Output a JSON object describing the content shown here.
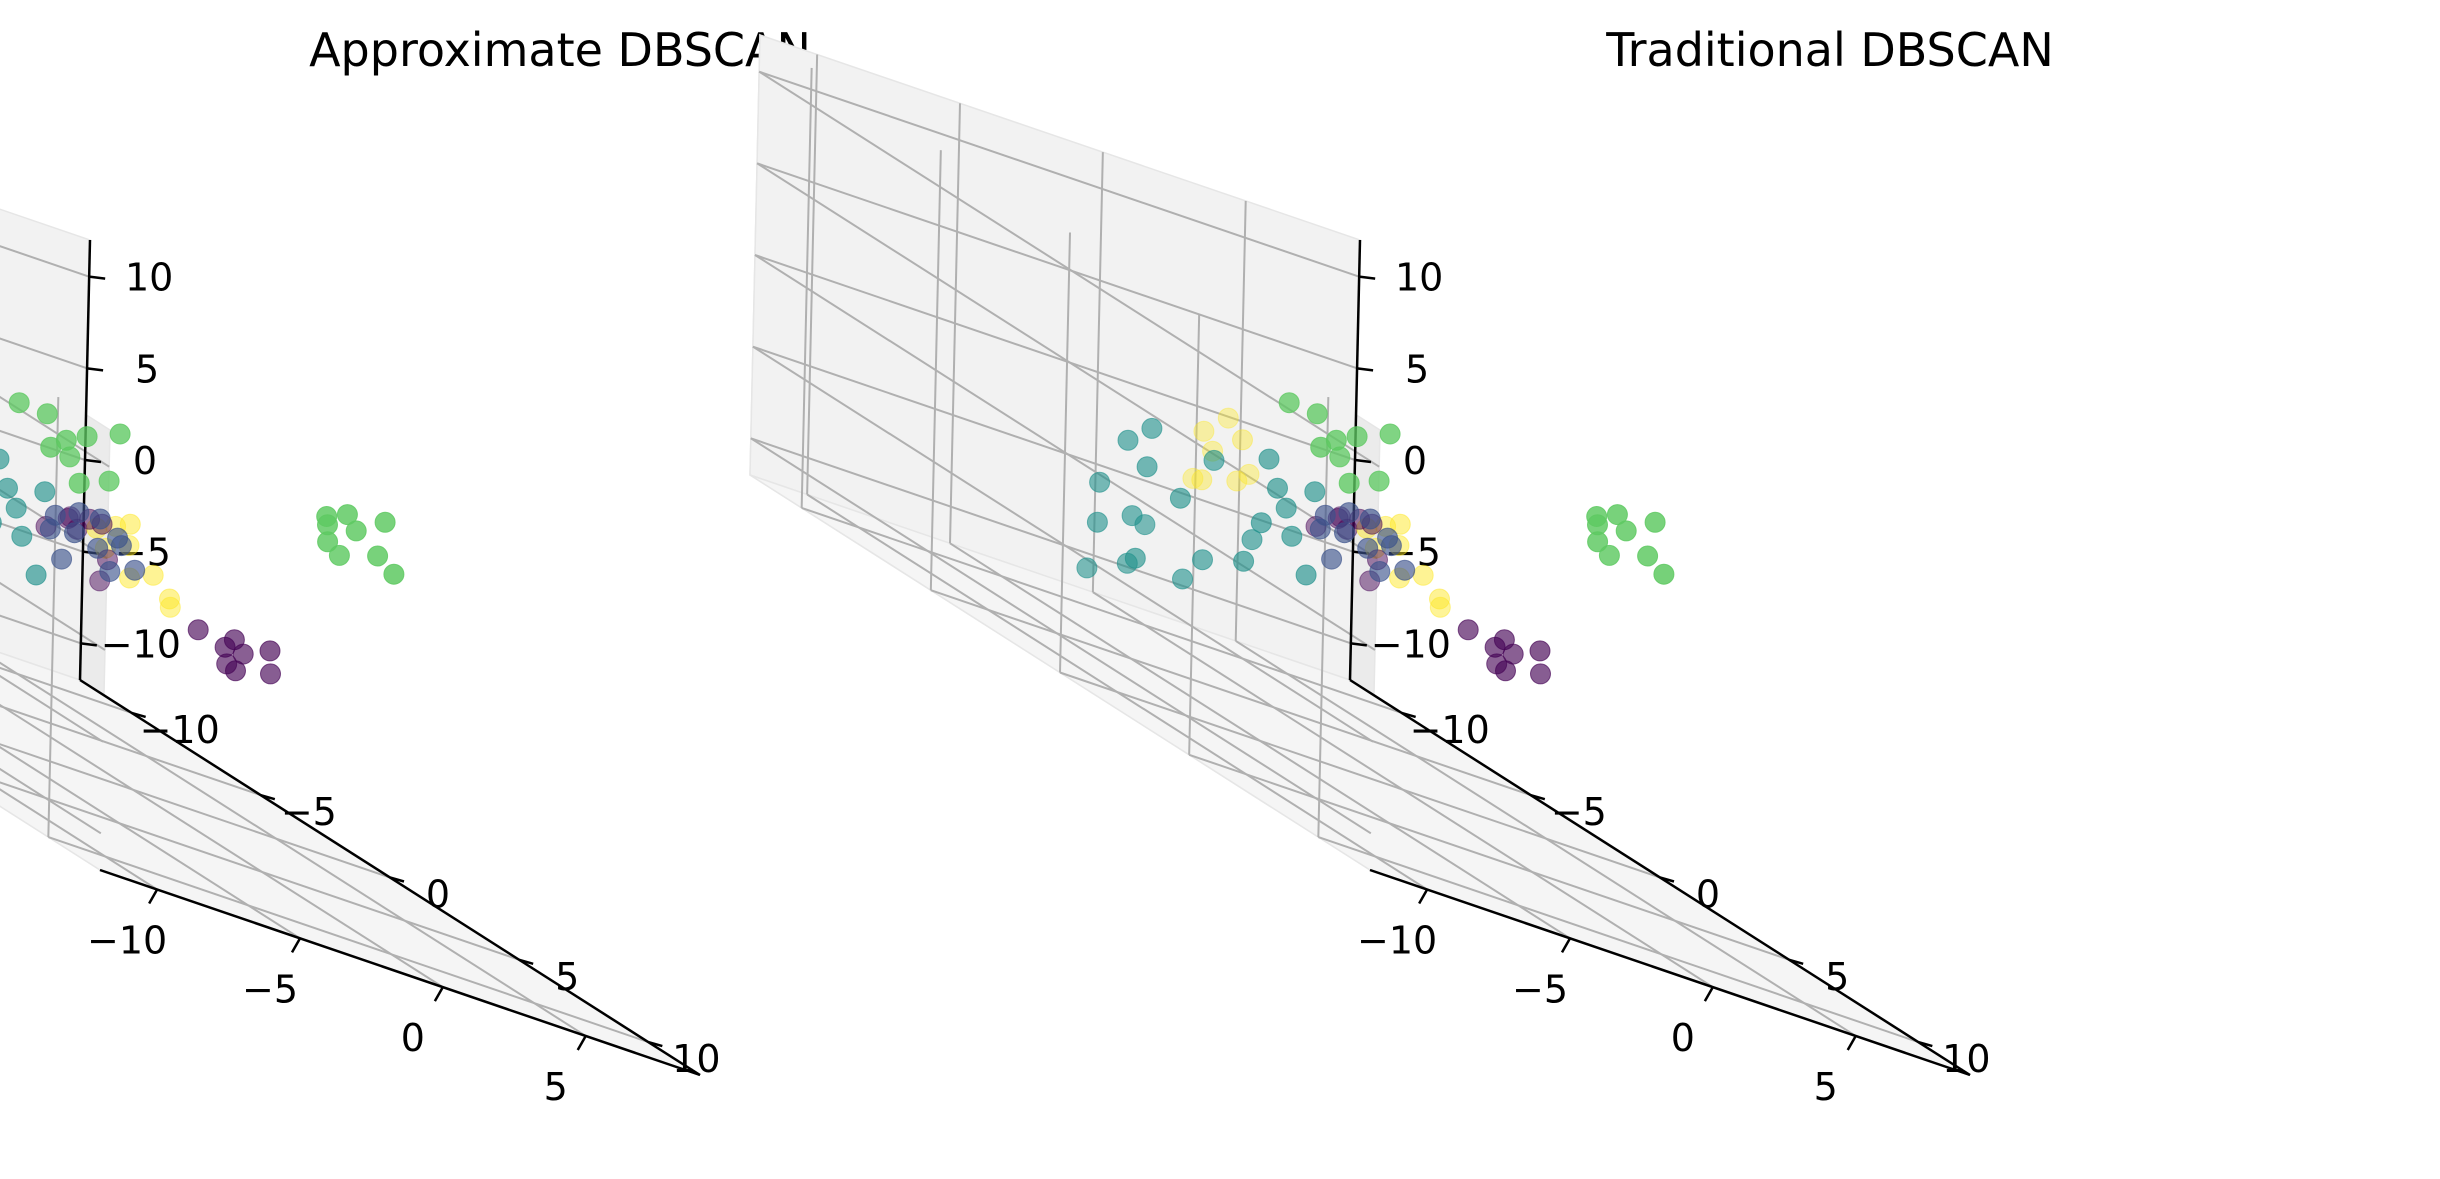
{
  "figure": {
    "titles": [
      "Approximate DBSCAN",
      "Traditional DBSCAN"
    ]
  },
  "chart_data": [
    {
      "type": "scatter",
      "projection": "3d",
      "title": "Approximate DBSCAN",
      "xlabel": "",
      "ylabel": "",
      "zlabel": "",
      "xlim": [
        -12,
        9
      ],
      "ylim": [
        -12,
        12
      ],
      "zlim": [
        -12,
        12
      ],
      "x_ticks": [
        "−10",
        "−5",
        "0",
        "5"
      ],
      "y_ticks": [
        "−10",
        "−5",
        "0",
        "5",
        "10"
      ],
      "z_ticks": [
        "−10",
        "−5",
        "0",
        "5",
        "10"
      ],
      "grid": true,
      "colormap": "viridis",
      "cluster_colors": {
        "0": "#440154",
        "1": "#3b528b",
        "2": "#21918c",
        "3": "#5ec962",
        "4": "#fde725"
      },
      "clusters": [
        {
          "label": 0,
          "points": [
            [
              4,
              -1,
              -3
            ],
            [
              4.5,
              -1.2,
              -2.5
            ],
            [
              5,
              -1.4,
              -3.2
            ],
            [
              4.2,
              -0.8,
              -4
            ],
            [
              5.6,
              -1,
              -3.6
            ],
            [
              3.6,
              -1.6,
              -2.8
            ],
            [
              5.2,
              -0.6,
              -2.2
            ],
            [
              4.8,
              -1.8,
              -4.2
            ],
            [
              3,
              -6,
              -1
            ],
            [
              3.5,
              -6.2,
              -1.5
            ],
            [
              4,
              -5.8,
              -0.6
            ],
            [
              2.6,
              -6.4,
              -2
            ],
            [
              4.4,
              -6,
              -2.5
            ],
            [
              3.2,
              -5.4,
              -0.4
            ],
            [
              3.8,
              -6.8,
              -1.2
            ],
            [
              4.6,
              -6.5,
              -4
            ]
          ]
        },
        {
          "label": 1,
          "points": [
            [
              -2,
              -1,
              1
            ],
            [
              -1.5,
              -0.8,
              0.5
            ],
            [
              -1,
              -1.2,
              1.5
            ],
            [
              -0.5,
              -1,
              0
            ],
            [
              0,
              -0.8,
              1
            ],
            [
              0.5,
              -1.2,
              0.5
            ],
            [
              -1.8,
              -1.4,
              0
            ],
            [
              -0.8,
              -0.6,
              1.8
            ],
            [
              0.8,
              -1,
              -0.5
            ],
            [
              -1.2,
              -1.6,
              -1.5
            ],
            [
              0.3,
              -1.4,
              -1.2
            ]
          ]
        },
        {
          "label": 2,
          "points": [
            [
              -8,
              -2,
              1
            ],
            [
              -7.5,
              -1.8,
              0
            ],
            [
              -7,
              -2.2,
              2
            ],
            [
              -8.5,
              -2.5,
              -2
            ],
            [
              -6.5,
              -1.6,
              -1
            ],
            [
              -7.8,
              -2,
              -3
            ],
            [
              -6.8,
              -2.6,
              -3.5
            ],
            [
              -8.2,
              -1.4,
              -5
            ],
            [
              -7.2,
              -2.8,
              -6
            ],
            [
              -6,
              -2,
              -5.5
            ],
            [
              -5.5,
              -1.8,
              -4
            ],
            [
              -9,
              -2,
              -4
            ],
            [
              -8.6,
              -2.8,
              -7
            ],
            [
              -4,
              -1,
              3
            ],
            [
              -3.5,
              -1.2,
              1.5
            ],
            [
              -3,
              -1.4,
              0.5
            ],
            [
              -4.4,
              -0.8,
              -0.5
            ],
            [
              -2.6,
              -1.6,
              -1
            ],
            [
              -3.8,
              -1.8,
              -2
            ],
            [
              -4.8,
              -1,
              -3
            ],
            [
              -2.2,
              -1.2,
              2
            ],
            [
              -2.8,
              -0.8,
              -2.5
            ],
            [
              -5,
              -2,
              1.5
            ]
          ]
        },
        {
          "label": 3,
          "points": [
            [
              -6,
              3,
              8
            ],
            [
              -5.5,
              3.2,
              7
            ],
            [
              -5,
              2.8,
              6
            ],
            [
              -6.4,
              3.6,
              6.5
            ],
            [
              -4.6,
              3,
              7.5
            ],
            [
              -5.2,
              3.4,
              5
            ],
            [
              -4,
              3.6,
              8.5
            ],
            [
              -6.8,
              2.8,
              8
            ],
            [
              -3.8,
              3,
              5.5
            ],
            [
              2,
              5,
              8
            ],
            [
              2.5,
              5.2,
              9
            ],
            [
              3,
              5,
              8.2
            ],
            [
              2.2,
              4.8,
              7
            ],
            [
              3.4,
              5.4,
              7.4
            ],
            [
              2.8,
              4.6,
              6.4
            ],
            [
              1.6,
              5.4,
              8.6
            ],
            [
              4,
              5,
              9.2
            ],
            [
              3.8,
              5.6,
              6.8
            ]
          ]
        },
        {
          "label": 4,
          "points": [
            [
              1,
              -9,
              0
            ],
            [
              1.5,
              -9.2,
              -1
            ],
            [
              2,
              -8.8,
              -2
            ],
            [
              1.2,
              -9.6,
              -3
            ],
            [
              2.6,
              -9,
              -1.5
            ],
            [
              0.6,
              -8.6,
              -2.5
            ],
            [
              2.2,
              -9.4,
              1
            ],
            [
              1.8,
              -8.4,
              0.5
            ],
            [
              4,
              -6,
              -1
            ],
            [
              4.5,
              -6.2,
              -2
            ],
            [
              5,
              -5.8,
              -3
            ],
            [
              5.5,
              -6.4,
              -1.5
            ],
            [
              6,
              -6,
              -2.5
            ],
            [
              4.8,
              -5.6,
              0
            ],
            [
              6.4,
              -5.8,
              -3.4
            ],
            [
              5.2,
              -6.6,
              -0.8
            ],
            [
              6.8,
              -6.2,
              -4
            ]
          ]
        }
      ]
    },
    {
      "type": "scatter",
      "projection": "3d",
      "title": "Traditional DBSCAN",
      "xlabel": "",
      "ylabel": "",
      "zlabel": "",
      "xlim": [
        -12,
        9
      ],
      "ylim": [
        -12,
        12
      ],
      "zlim": [
        -12,
        12
      ],
      "x_ticks": [
        "−10",
        "−5",
        "0",
        "5"
      ],
      "y_ticks": [
        "−10",
        "−5",
        "0",
        "5",
        "10"
      ],
      "z_ticks": [
        "−10",
        "−5",
        "0",
        "5",
        "10"
      ],
      "grid": true,
      "colormap": "viridis",
      "cluster_colors": {
        "0": "#440154",
        "1": "#3b528b",
        "2": "#21918c",
        "3": "#5ec962",
        "4": "#fde725"
      },
      "clusters": [
        {
          "label": 0,
          "points": [
            [
              4,
              -1,
              -3
            ],
            [
              4.5,
              -1.2,
              -2.5
            ],
            [
              5,
              -1.4,
              -3.2
            ],
            [
              4.2,
              -0.8,
              -4
            ],
            [
              5.6,
              -1,
              -3.6
            ],
            [
              3.6,
              -1.6,
              -2.8
            ],
            [
              5.2,
              -0.6,
              -2.2
            ],
            [
              4.8,
              -1.8,
              -4.2
            ],
            [
              3,
              -6,
              -1
            ],
            [
              3.5,
              -6.2,
              -1.5
            ],
            [
              4,
              -5.8,
              -0.6
            ],
            [
              2.6,
              -6.4,
              -2
            ],
            [
              4.4,
              -6,
              -2.5
            ],
            [
              3.2,
              -5.4,
              -0.4
            ],
            [
              3.8,
              -6.8,
              -1.2
            ],
            [
              4.6,
              -6.5,
              -4
            ]
          ]
        },
        {
          "label": 1,
          "points": [
            [
              -2,
              -1,
              1
            ],
            [
              -1.5,
              -0.8,
              0.5
            ],
            [
              -1,
              -1.2,
              1.5
            ],
            [
              -0.5,
              -1,
              0
            ],
            [
              0,
              -0.8,
              1
            ],
            [
              0.5,
              -1.2,
              0.5
            ],
            [
              -1.8,
              -1.4,
              0
            ],
            [
              -0.8,
              -0.6,
              1.8
            ],
            [
              0.8,
              -1,
              -0.5
            ],
            [
              -1.2,
              -1.6,
              -1.5
            ],
            [
              0.3,
              -1.4,
              -1.2
            ]
          ]
        },
        {
          "label": 2,
          "points": [
            [
              -8,
              -2,
              1
            ],
            [
              -7.5,
              -1.8,
              0
            ],
            [
              -7,
              -2.2,
              2
            ],
            [
              -8.5,
              -2.5,
              -2
            ],
            [
              -6.5,
              -1.6,
              -1
            ],
            [
              -7.8,
              -2,
              -3
            ],
            [
              -6.8,
              -2.6,
              -3.5
            ],
            [
              -8.2,
              -1.4,
              -5
            ],
            [
              -7.2,
              -2.8,
              -6
            ],
            [
              -6,
              -2,
              -5.5
            ],
            [
              -5.5,
              -1.8,
              -4
            ],
            [
              -9,
              -2,
              -4
            ],
            [
              -8.6,
              -2.8,
              -7
            ],
            [
              -4,
              -1,
              3
            ],
            [
              -3.5,
              -1.2,
              1.5
            ],
            [
              -3,
              -1.4,
              0.5
            ],
            [
              -4.4,
              -0.8,
              -0.5
            ],
            [
              -2.6,
              -1.6,
              -1
            ],
            [
              -3.8,
              -1.8,
              -2
            ],
            [
              -4.8,
              -1,
              -3
            ],
            [
              -2.2,
              -1.2,
              2
            ],
            [
              -2.8,
              -0.8,
              -2.5
            ],
            [
              -5,
              -2,
              1.5
            ]
          ]
        },
        {
          "label": 3,
          "points": [
            [
              -6,
              3,
              8
            ],
            [
              -5.5,
              3.2,
              7
            ],
            [
              -5,
              2.8,
              6
            ],
            [
              -6.4,
              3.6,
              6.5
            ],
            [
              -4.6,
              3,
              7.5
            ],
            [
              -5.2,
              3.4,
              5
            ],
            [
              -4,
              3.6,
              8.5
            ],
            [
              -6.8,
              2.8,
              8
            ],
            [
              -3.8,
              3,
              5.5
            ],
            [
              2,
              5,
              8
            ],
            [
              2.5,
              5.2,
              9
            ],
            [
              3,
              5,
              8.2
            ],
            [
              2.2,
              4.8,
              7
            ],
            [
              3.4,
              5.4,
              7.4
            ],
            [
              2.8,
              4.6,
              6.4
            ],
            [
              1.6,
              5.4,
              8.6
            ],
            [
              4,
              5,
              9.2
            ],
            [
              3.8,
              5.6,
              6.8
            ]
          ]
        },
        {
          "label": 4,
          "points": [
            [
              1,
              -9,
              0
            ],
            [
              1.5,
              -9.2,
              -1
            ],
            [
              2,
              -8.8,
              -2
            ],
            [
              1.2,
              -9.6,
              -3
            ],
            [
              2.6,
              -9,
              -1.5
            ],
            [
              0.6,
              -8.6,
              -2.5
            ],
            [
              2.2,
              -9.4,
              1
            ],
            [
              1.8,
              -8.4,
              0.5
            ],
            [
              4,
              -6,
              -1
            ],
            [
              4.5,
              -6.2,
              -2
            ],
            [
              5,
              -5.8,
              -3
            ],
            [
              5.5,
              -6.4,
              -1.5
            ],
            [
              6,
              -6,
              -2.5
            ],
            [
              4.8,
              -5.6,
              0
            ],
            [
              6.4,
              -5.8,
              -3.4
            ],
            [
              5.2,
              -6.6,
              -0.8
            ],
            [
              6.8,
              -6.2,
              -4
            ]
          ]
        }
      ]
    }
  ]
}
